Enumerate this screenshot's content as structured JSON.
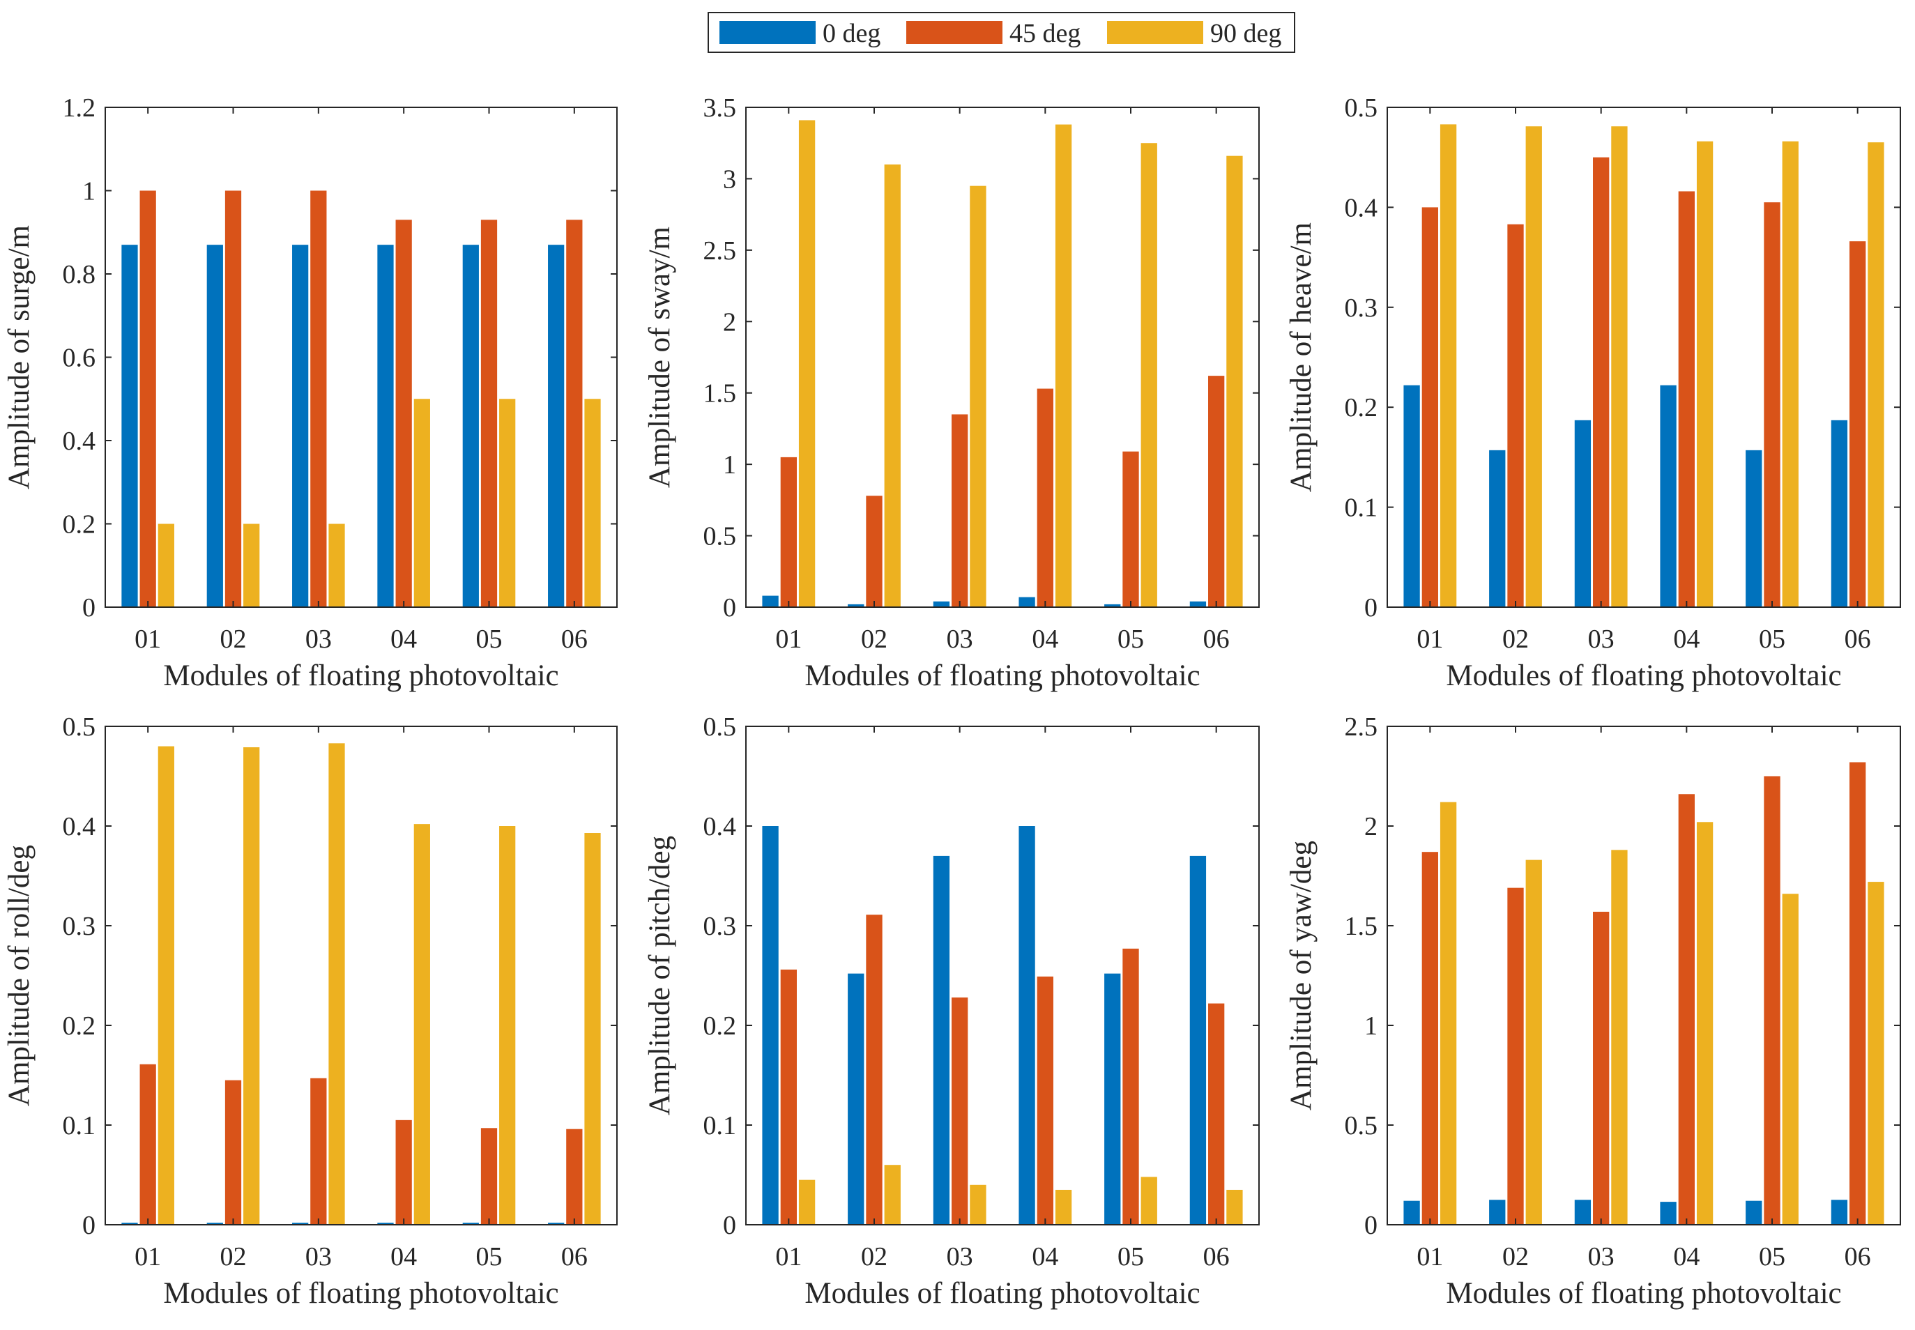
{
  "colors": {
    "0 deg": "#0072BD",
    "45 deg": "#D95319",
    "90 deg": "#EDB120"
  },
  "legend": [
    "0 deg",
    "45 deg",
    "90 deg"
  ],
  "chart_data": [
    {
      "type": "bar",
      "categories": [
        "01",
        "02",
        "03",
        "04",
        "05",
        "06"
      ],
      "xlabel": "Modules of floating photovoltaic",
      "ylabel": "Amplitude of surge/m",
      "ylim": [
        0,
        1.2
      ],
      "yticks": [
        0,
        0.2,
        0.4,
        0.6,
        0.8,
        1,
        1.2
      ],
      "series": [
        {
          "name": "0 deg",
          "values": [
            0.87,
            0.87,
            0.87,
            0.87,
            0.87,
            0.87
          ]
        },
        {
          "name": "45 deg",
          "values": [
            1.0,
            1.0,
            1.0,
            0.93,
            0.93,
            0.93
          ]
        },
        {
          "name": "90 deg",
          "values": [
            0.2,
            0.2,
            0.2,
            0.5,
            0.5,
            0.5
          ]
        }
      ]
    },
    {
      "type": "bar",
      "categories": [
        "01",
        "02",
        "03",
        "04",
        "05",
        "06"
      ],
      "xlabel": "Modules of floating photovoltaic",
      "ylabel": "Amplitude of sway/m",
      "ylim": [
        0,
        3.5
      ],
      "yticks": [
        0,
        0.5,
        1,
        1.5,
        2,
        2.5,
        3,
        3.5
      ],
      "series": [
        {
          "name": "0 deg",
          "values": [
            0.08,
            0.02,
            0.04,
            0.07,
            0.02,
            0.04
          ]
        },
        {
          "name": "45 deg",
          "values": [
            1.05,
            0.78,
            1.35,
            1.53,
            1.09,
            1.62
          ]
        },
        {
          "name": "90 deg",
          "values": [
            3.41,
            3.1,
            2.95,
            3.38,
            3.25,
            3.16
          ]
        }
      ]
    },
    {
      "type": "bar",
      "categories": [
        "01",
        "02",
        "03",
        "04",
        "05",
        "06"
      ],
      "xlabel": "Modules of floating photovoltaic",
      "ylabel": "Amplitude of heave/m",
      "ylim": [
        0,
        0.5
      ],
      "yticks": [
        0,
        0.1,
        0.2,
        0.3,
        0.4,
        0.5
      ],
      "series": [
        {
          "name": "0 deg",
          "values": [
            0.222,
            0.157,
            0.187,
            0.222,
            0.157,
            0.187
          ]
        },
        {
          "name": "45 deg",
          "values": [
            0.4,
            0.383,
            0.45,
            0.416,
            0.405,
            0.366
          ]
        },
        {
          "name": "90 deg",
          "values": [
            0.483,
            0.481,
            0.481,
            0.466,
            0.466,
            0.465
          ]
        }
      ]
    },
    {
      "type": "bar",
      "categories": [
        "01",
        "02",
        "03",
        "04",
        "05",
        "06"
      ],
      "xlabel": "Modules of floating photovoltaic",
      "ylabel": "Amplitude of roll/deg",
      "ylim": [
        0,
        0.5
      ],
      "yticks": [
        0,
        0.1,
        0.2,
        0.3,
        0.4,
        0.5
      ],
      "series": [
        {
          "name": "0 deg",
          "values": [
            0.002,
            0.002,
            0.002,
            0.002,
            0.002,
            0.002
          ]
        },
        {
          "name": "45 deg",
          "values": [
            0.161,
            0.145,
            0.147,
            0.105,
            0.097,
            0.096
          ]
        },
        {
          "name": "90 deg",
          "values": [
            0.48,
            0.479,
            0.483,
            0.402,
            0.4,
            0.393
          ]
        }
      ]
    },
    {
      "type": "bar",
      "categories": [
        "01",
        "02",
        "03",
        "04",
        "05",
        "06"
      ],
      "xlabel": "Modules of floating photovoltaic",
      "ylabel": "Amplitude of pitch/deg",
      "ylim": [
        0,
        0.5
      ],
      "yticks": [
        0,
        0.1,
        0.2,
        0.3,
        0.4,
        0.5
      ],
      "series": [
        {
          "name": "0 deg",
          "values": [
            0.4,
            0.252,
            0.37,
            0.4,
            0.252,
            0.37
          ]
        },
        {
          "name": "45 deg",
          "values": [
            0.256,
            0.311,
            0.228,
            0.249,
            0.277,
            0.222
          ]
        },
        {
          "name": "90 deg",
          "values": [
            0.045,
            0.06,
            0.04,
            0.035,
            0.048,
            0.035
          ]
        }
      ]
    },
    {
      "type": "bar",
      "categories": [
        "01",
        "02",
        "03",
        "04",
        "05",
        "06"
      ],
      "xlabel": "Modules of floating photovoltaic",
      "ylabel": "Amplitude of yaw/deg",
      "ylim": [
        0,
        2.5
      ],
      "yticks": [
        0,
        0.5,
        1,
        1.5,
        2,
        2.5
      ],
      "series": [
        {
          "name": "0 deg",
          "values": [
            0.12,
            0.125,
            0.125,
            0.115,
            0.12,
            0.125
          ]
        },
        {
          "name": "45 deg",
          "values": [
            1.87,
            1.69,
            1.57,
            2.16,
            2.25,
            2.32
          ]
        },
        {
          "name": "90 deg",
          "values": [
            2.12,
            1.83,
            1.88,
            2.02,
            1.66,
            1.72
          ]
        }
      ]
    }
  ]
}
